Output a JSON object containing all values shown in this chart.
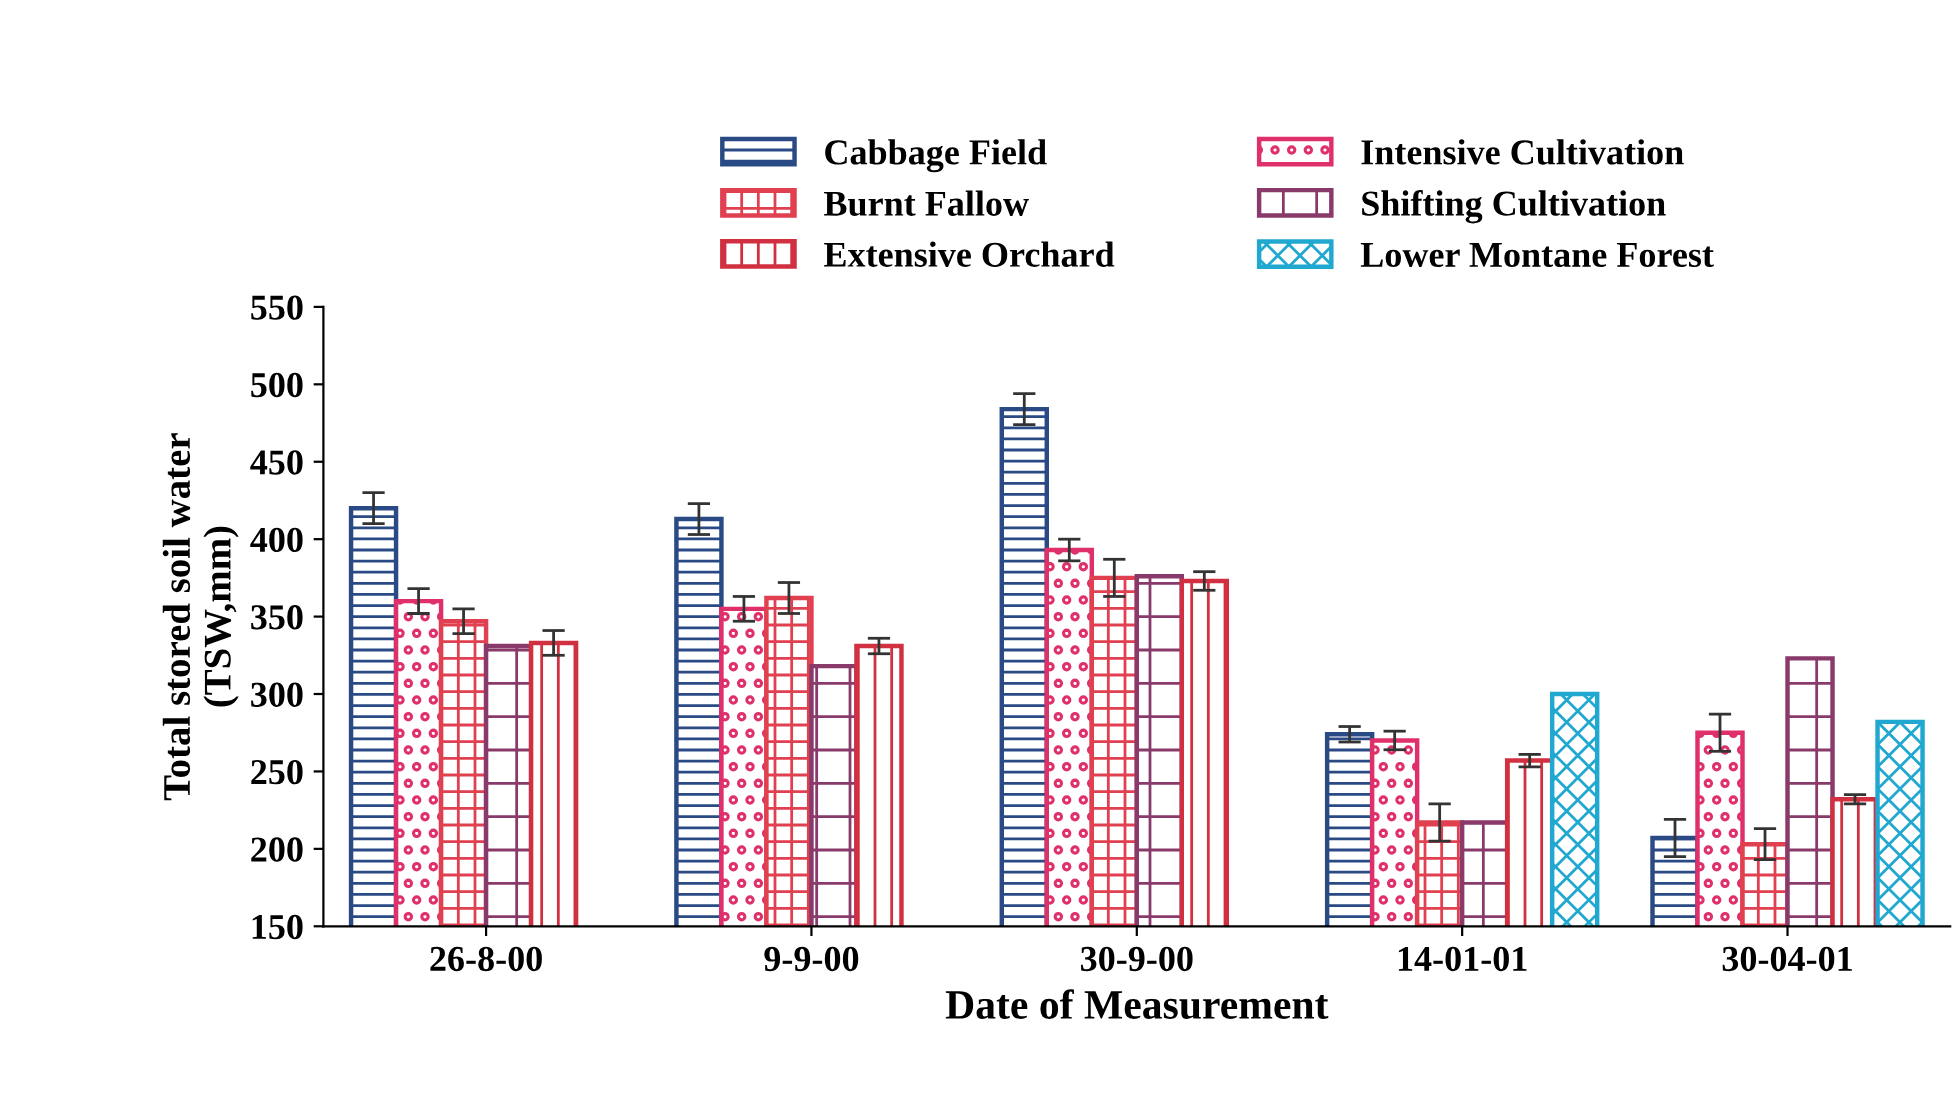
{
  "chart_data": {
    "type": "bar",
    "xlabel": "Date of Measurement",
    "ylabel": "Total stored soil water\n(TSW,mm)",
    "categories": [
      "26-8-00",
      "9-9-00",
      "30-9-00",
      "14-01-01",
      "30-04-01"
    ],
    "series": [
      {
        "name": "Cabbage Field",
        "color": "#2a4a85",
        "values": [
          420,
          413,
          484,
          274,
          207
        ],
        "errors": [
          10,
          10,
          10,
          5,
          12
        ]
      },
      {
        "name": "Intensive Cultivation",
        "color": "#e0306a",
        "values": [
          360,
          355,
          393,
          270,
          275
        ],
        "errors": [
          8,
          8,
          7,
          6,
          12
        ]
      },
      {
        "name": "Burnt Fallow",
        "color": "#e04050",
        "values": [
          347,
          362,
          375,
          217,
          203
        ],
        "errors": [
          8,
          10,
          12,
          12,
          10
        ]
      },
      {
        "name": "Shifting Cultivation",
        "color": "#8a3a6a",
        "values": [
          331,
          318,
          376,
          217,
          323
        ]
      },
      {
        "name": "Extensive Orchard",
        "color": "#d03040",
        "values": [
          333,
          331,
          373,
          257,
          232
        ],
        "errors": [
          8,
          5,
          6,
          4,
          3
        ]
      },
      {
        "name": "Lower Montane Forest",
        "color": "#20a8d0",
        "values": [
          null,
          null,
          null,
          300,
          282
        ]
      }
    ],
    "ylim": [
      150,
      550
    ],
    "yticks": [
      150,
      200,
      250,
      300,
      350,
      400,
      450,
      500,
      550
    ],
    "legend": "top",
    "grid": false
  }
}
